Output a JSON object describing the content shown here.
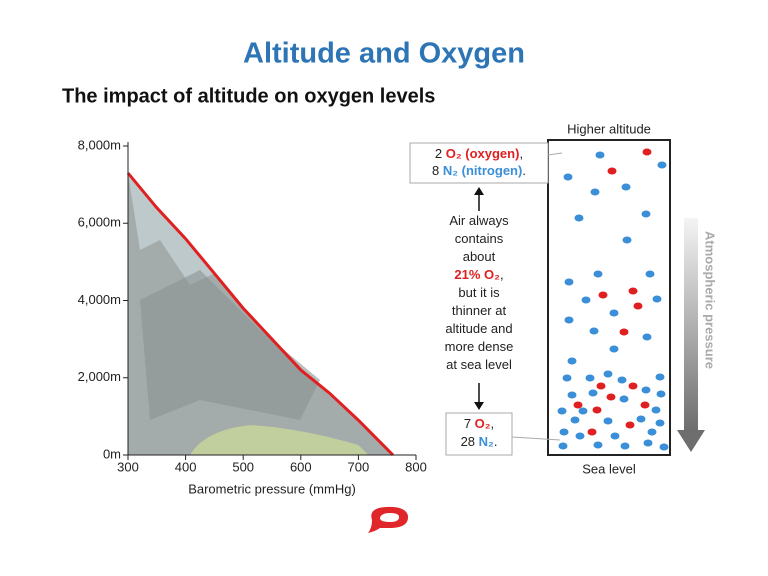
{
  "title": "Altitude and Oxygen",
  "chart_data": {
    "type": "line",
    "title": "The impact of altitude on oxygen levels",
    "x_label": "Barometric pressure (mmHg)",
    "x": [
      300,
      350,
      400,
      450,
      500,
      550,
      600,
      650,
      700,
      760
    ],
    "series": [
      {
        "color": "#e02020",
        "values": [
          7300,
          6400,
          5600,
          4700,
          3800,
          3000,
          2200,
          1600,
          900,
          0
        ]
      }
    ],
    "area_color": "#a4abab",
    "xlim": [
      300,
      800
    ],
    "xticks": [
      300,
      400,
      500,
      600,
      700,
      800
    ],
    "ylim": [
      0,
      8000
    ],
    "yticks": [
      {
        "value": 0,
        "label": "0m"
      },
      {
        "value": 2000,
        "label": "2,000m"
      },
      {
        "value": 4000,
        "label": "4,000m"
      },
      {
        "value": 6000,
        "label": "6,000m"
      },
      {
        "value": 8000,
        "label": "8,000m"
      }
    ]
  },
  "diagram": {
    "top_label": "Higher altitude",
    "bottom_label": "Sea level",
    "arrow_label": "Atmospheric pressure",
    "top_callout": [
      [
        {
          "text": "2 "
        },
        {
          "text": "O₂ (oxygen)",
          "color": "#e02020"
        },
        {
          "text": ","
        }
      ],
      [
        {
          "text": "8 "
        },
        {
          "text": "N₂ (nitrogen)",
          "color": "#3a8fd8"
        },
        {
          "text": "."
        }
      ]
    ],
    "middle_text": [
      [
        {
          "text": "Air always"
        }
      ],
      [
        {
          "text": "contains"
        }
      ],
      [
        {
          "text": "about"
        }
      ],
      [
        {
          "text": "21% O₂",
          "color": "#e02020"
        },
        {
          "text": ","
        }
      ],
      [
        {
          "text": "but it is"
        }
      ],
      [
        {
          "text": "thinner at"
        }
      ],
      [
        {
          "text": "altitude and"
        }
      ],
      [
        {
          "text": "more dense"
        }
      ],
      [
        {
          "text": "at sea level"
        }
      ]
    ],
    "bottom_callout": [
      [
        {
          "text": "7 "
        },
        {
          "text": "O₂",
          "color": "#e02020"
        },
        {
          "text": ","
        }
      ],
      [
        {
          "text": "28 "
        },
        {
          "text": "N₂",
          "color": "#3a8fd8"
        },
        {
          "text": "."
        }
      ]
    ]
  }
}
